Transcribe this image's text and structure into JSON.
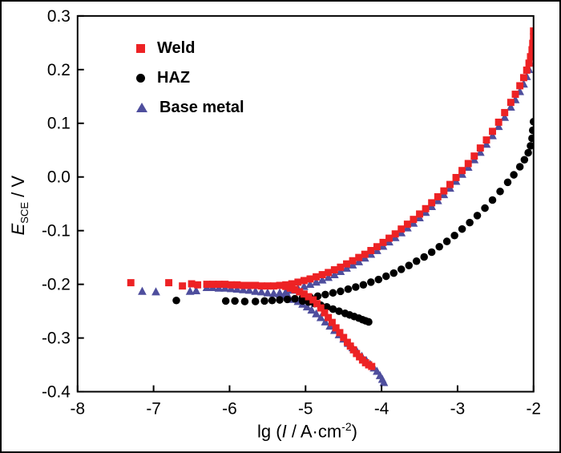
{
  "figure": {
    "background": "#ffffff",
    "border_color": "#000000",
    "text_color": "#000000"
  },
  "chart_data": {
    "type": "scatter",
    "title": "",
    "xlabel": "lg (I / A·cm-2)",
    "ylabel": "E_SCE / V",
    "xlabel_parts": {
      "prefix": "lg (",
      "italic": "I",
      "mid": " / A·cm",
      "sup": "-2",
      "suffix": ")"
    },
    "ylabel_parts": {
      "italic": "E",
      "sub": "SCE",
      "suffix": " / V"
    },
    "xlim": [
      -8,
      -2
    ],
    "ylim": [
      -0.4,
      0.3
    ],
    "xticks": [
      -8,
      -7,
      -6,
      -5,
      -4,
      -3,
      -2
    ],
    "yticks": [
      -0.4,
      -0.3,
      -0.2,
      -0.1,
      0.0,
      0.1,
      0.2,
      0.3
    ],
    "xtick_labels": [
      "-8",
      "-7",
      "-6",
      "-5",
      "-4",
      "-3",
      "-2"
    ],
    "ytick_labels": [
      "-0.4",
      "-0.3",
      "-0.2",
      "-0.1",
      "0.0",
      "0.1",
      "0.2",
      "0.3"
    ],
    "grid": false,
    "legend_position": "top-left",
    "series": [
      {
        "name": "Weld",
        "marker": "square",
        "color": "#ed2224",
        "points": [
          [
            -7.3,
            -0.197
          ],
          [
            -6.8,
            -0.197
          ],
          [
            -6.62,
            -0.203
          ],
          [
            -6.5,
            -0.199
          ],
          [
            -6.42,
            -0.201
          ],
          [
            -6.3,
            -0.2
          ],
          [
            -6.22,
            -0.2
          ],
          [
            -6.14,
            -0.2
          ],
          [
            -6.06,
            -0.2
          ],
          [
            -5.98,
            -0.201
          ],
          [
            -5.9,
            -0.201
          ],
          [
            -5.82,
            -0.202
          ],
          [
            -5.74,
            -0.202
          ],
          [
            -5.66,
            -0.202
          ],
          [
            -5.58,
            -0.203
          ],
          [
            -5.5,
            -0.203
          ],
          [
            -5.42,
            -0.203
          ],
          [
            -5.34,
            -0.202
          ],
          [
            -5.26,
            -0.201
          ],
          [
            -5.18,
            -0.199
          ],
          [
            -5.1,
            -0.196
          ],
          [
            -5.02,
            -0.193
          ],
          [
            -4.94,
            -0.19
          ],
          [
            -4.86,
            -0.186
          ],
          [
            -4.78,
            -0.182
          ],
          [
            -4.7,
            -0.178
          ],
          [
            -4.62,
            -0.173
          ],
          [
            -4.54,
            -0.168
          ],
          [
            -4.46,
            -0.162
          ],
          [
            -4.38,
            -0.156
          ],
          [
            -4.3,
            -0.15
          ],
          [
            -4.22,
            -0.144
          ],
          [
            -4.14,
            -0.137
          ],
          [
            -4.06,
            -0.13
          ],
          [
            -3.98,
            -0.122
          ],
          [
            -3.9,
            -0.114
          ],
          [
            -3.82,
            -0.106
          ],
          [
            -3.74,
            -0.097
          ],
          [
            -3.66,
            -0.088
          ],
          [
            -3.58,
            -0.079
          ],
          [
            -3.5,
            -0.069
          ],
          [
            -3.42,
            -0.059
          ],
          [
            -3.34,
            -0.048
          ],
          [
            -3.26,
            -0.037
          ],
          [
            -3.18,
            -0.026
          ],
          [
            -3.1,
            -0.014
          ],
          [
            -3.02,
            -0.001
          ],
          [
            -2.94,
            0.012
          ],
          [
            -2.86,
            0.025
          ],
          [
            -2.78,
            0.039
          ],
          [
            -2.7,
            0.054
          ],
          [
            -2.62,
            0.069
          ],
          [
            -2.54,
            0.085
          ],
          [
            -2.46,
            0.102
          ],
          [
            -2.38,
            0.12
          ],
          [
            -2.3,
            0.139
          ],
          [
            -2.24,
            0.154
          ],
          [
            -2.18,
            0.17
          ],
          [
            -2.13,
            0.185
          ],
          [
            -2.09,
            0.199
          ],
          [
            -2.06,
            0.212
          ],
          [
            -2.04,
            0.224
          ],
          [
            -2.02,
            0.237
          ],
          [
            -2.01,
            0.249
          ],
          [
            -2.0,
            0.261
          ],
          [
            -2.0,
            0.272
          ],
          [
            -5.26,
            -0.204
          ],
          [
            -5.2,
            -0.207
          ],
          [
            -5.14,
            -0.21
          ],
          [
            -5.08,
            -0.214
          ],
          [
            -5.02,
            -0.218
          ],
          [
            -4.96,
            -0.223
          ],
          [
            -4.9,
            -0.229
          ],
          [
            -4.85,
            -0.236
          ],
          [
            -4.8,
            -0.244
          ],
          [
            -4.75,
            -0.253
          ],
          [
            -4.7,
            -0.262
          ],
          [
            -4.65,
            -0.271
          ],
          [
            -4.6,
            -0.281
          ],
          [
            -4.55,
            -0.29
          ],
          [
            -4.5,
            -0.299
          ],
          [
            -4.45,
            -0.308
          ],
          [
            -4.41,
            -0.315
          ],
          [
            -4.37,
            -0.322
          ],
          [
            -4.33,
            -0.329
          ],
          [
            -4.29,
            -0.335
          ],
          [
            -4.25,
            -0.341
          ],
          [
            -4.21,
            -0.346
          ],
          [
            -4.17,
            -0.35
          ],
          [
            -4.13,
            -0.353
          ]
        ]
      },
      {
        "name": "HAZ",
        "marker": "circle",
        "color": "#000000",
        "points": [
          [
            -6.7,
            -0.23
          ],
          [
            -6.05,
            -0.231
          ],
          [
            -5.93,
            -0.231
          ],
          [
            -5.8,
            -0.232
          ],
          [
            -5.66,
            -0.232
          ],
          [
            -5.54,
            -0.231
          ],
          [
            -5.44,
            -0.23
          ],
          [
            -5.34,
            -0.229
          ],
          [
            -5.24,
            -0.228
          ],
          [
            -5.14,
            -0.227
          ],
          [
            -5.04,
            -0.225
          ],
          [
            -4.94,
            -0.224
          ],
          [
            -4.84,
            -0.222
          ],
          [
            -4.74,
            -0.219
          ],
          [
            -4.64,
            -0.216
          ],
          [
            -4.54,
            -0.213
          ],
          [
            -4.44,
            -0.209
          ],
          [
            -4.34,
            -0.205
          ],
          [
            -4.24,
            -0.201
          ],
          [
            -4.14,
            -0.196
          ],
          [
            -4.04,
            -0.191
          ],
          [
            -3.94,
            -0.185
          ],
          [
            -3.84,
            -0.179
          ],
          [
            -3.74,
            -0.172
          ],
          [
            -3.64,
            -0.165
          ],
          [
            -3.54,
            -0.157
          ],
          [
            -3.44,
            -0.149
          ],
          [
            -3.34,
            -0.14
          ],
          [
            -3.24,
            -0.13
          ],
          [
            -3.14,
            -0.12
          ],
          [
            -3.04,
            -0.109
          ],
          [
            -2.94,
            -0.097
          ],
          [
            -2.84,
            -0.085
          ],
          [
            -2.74,
            -0.072
          ],
          [
            -2.64,
            -0.058
          ],
          [
            -2.54,
            -0.043
          ],
          [
            -2.44,
            -0.027
          ],
          [
            -2.34,
            -0.01
          ],
          [
            -2.26,
            0.004
          ],
          [
            -2.18,
            0.019
          ],
          [
            -2.12,
            0.032
          ],
          [
            -2.07,
            0.045
          ],
          [
            -2.04,
            0.058
          ],
          [
            -2.02,
            0.072
          ],
          [
            -2.01,
            0.087
          ],
          [
            -2.0,
            0.103
          ],
          [
            -5.04,
            -0.231
          ],
          [
            -4.96,
            -0.233
          ],
          [
            -4.88,
            -0.236
          ],
          [
            -4.8,
            -0.239
          ],
          [
            -4.72,
            -0.242
          ],
          [
            -4.64,
            -0.246
          ],
          [
            -4.56,
            -0.25
          ],
          [
            -4.48,
            -0.254
          ],
          [
            -4.42,
            -0.257
          ],
          [
            -4.36,
            -0.26
          ],
          [
            -4.3,
            -0.263
          ],
          [
            -4.25,
            -0.266
          ],
          [
            -4.21,
            -0.268
          ],
          [
            -4.17,
            -0.27
          ]
        ]
      },
      {
        "name": "Base metal",
        "marker": "triangle",
        "color": "#4e4e9d",
        "points": [
          [
            -7.15,
            -0.213
          ],
          [
            -6.97,
            -0.214
          ],
          [
            -6.52,
            -0.213
          ],
          [
            -6.44,
            -0.212
          ],
          [
            -6.3,
            -0.206
          ],
          [
            -6.22,
            -0.206
          ],
          [
            -6.14,
            -0.207
          ],
          [
            -6.06,
            -0.207
          ],
          [
            -5.98,
            -0.208
          ],
          [
            -5.9,
            -0.209
          ],
          [
            -5.82,
            -0.21
          ],
          [
            -5.74,
            -0.211
          ],
          [
            -5.66,
            -0.213
          ],
          [
            -5.58,
            -0.214
          ],
          [
            -5.5,
            -0.216
          ],
          [
            -5.42,
            -0.217
          ],
          [
            -5.34,
            -0.216
          ],
          [
            -5.26,
            -0.214
          ],
          [
            -5.18,
            -0.211
          ],
          [
            -5.1,
            -0.208
          ],
          [
            -5.02,
            -0.204
          ],
          [
            -4.94,
            -0.2
          ],
          [
            -4.86,
            -0.196
          ],
          [
            -4.78,
            -0.192
          ],
          [
            -4.7,
            -0.187
          ],
          [
            -4.62,
            -0.182
          ],
          [
            -4.54,
            -0.176
          ],
          [
            -4.46,
            -0.17
          ],
          [
            -4.38,
            -0.164
          ],
          [
            -4.3,
            -0.158
          ],
          [
            -4.22,
            -0.151
          ],
          [
            -4.14,
            -0.144
          ],
          [
            -4.06,
            -0.137
          ],
          [
            -3.98,
            -0.129
          ],
          [
            -3.9,
            -0.121
          ],
          [
            -3.82,
            -0.113
          ],
          [
            -3.74,
            -0.104
          ],
          [
            -3.66,
            -0.095
          ],
          [
            -3.58,
            -0.086
          ],
          [
            -3.5,
            -0.076
          ],
          [
            -3.42,
            -0.066
          ],
          [
            -3.34,
            -0.055
          ],
          [
            -3.26,
            -0.044
          ],
          [
            -3.18,
            -0.033
          ],
          [
            -3.1,
            -0.021
          ],
          [
            -3.02,
            -0.008
          ],
          [
            -2.94,
            0.005
          ],
          [
            -2.86,
            0.018
          ],
          [
            -2.78,
            0.032
          ],
          [
            -2.7,
            0.046
          ],
          [
            -2.62,
            0.061
          ],
          [
            -2.54,
            0.077
          ],
          [
            -2.46,
            0.094
          ],
          [
            -2.38,
            0.111
          ],
          [
            -2.3,
            0.13
          ],
          [
            -2.24,
            0.144
          ],
          [
            -2.18,
            0.159
          ],
          [
            -2.13,
            0.173
          ],
          [
            -2.09,
            0.187
          ],
          [
            -2.06,
            0.2
          ],
          [
            -2.04,
            0.212
          ],
          [
            -2.02,
            0.224
          ],
          [
            -2.01,
            0.237
          ],
          [
            -2.0,
            0.25
          ],
          [
            -5.34,
            -0.218
          ],
          [
            -5.28,
            -0.221
          ],
          [
            -5.22,
            -0.224
          ],
          [
            -5.16,
            -0.228
          ],
          [
            -5.1,
            -0.232
          ],
          [
            -5.04,
            -0.237
          ],
          [
            -4.98,
            -0.242
          ],
          [
            -4.92,
            -0.248
          ],
          [
            -4.86,
            -0.255
          ],
          [
            -4.8,
            -0.262
          ],
          [
            -4.74,
            -0.27
          ],
          [
            -4.68,
            -0.278
          ],
          [
            -4.62,
            -0.286
          ],
          [
            -4.56,
            -0.294
          ],
          [
            -4.5,
            -0.302
          ],
          [
            -4.44,
            -0.31
          ],
          [
            -4.38,
            -0.318
          ],
          [
            -4.32,
            -0.326
          ],
          [
            -4.26,
            -0.334
          ],
          [
            -4.2,
            -0.342
          ],
          [
            -4.15,
            -0.349
          ],
          [
            -4.1,
            -0.356
          ],
          [
            -4.06,
            -0.362
          ],
          [
            -4.02,
            -0.37
          ],
          [
            -3.99,
            -0.377
          ],
          [
            -3.97,
            -0.383
          ]
        ]
      }
    ]
  }
}
